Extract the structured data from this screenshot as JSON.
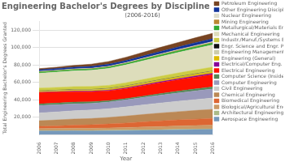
{
  "chart_data": {
    "type": "stacked_area",
    "title": "Engineering Bachelor's Degrees by Discipline",
    "subtitle": "(2006-2016)",
    "xlabel": "Year",
    "ylabel": "Total Engineering Bachelor's Degrees Granted",
    "x": [
      2006,
      2007,
      2008,
      2009,
      2010,
      2011,
      2012,
      2013,
      2014,
      2015,
      2016
    ],
    "xlim": [
      2006,
      2016
    ],
    "xticks": [
      2006,
      2007,
      2008,
      2009,
      2010,
      2011,
      2012,
      2013,
      2014,
      2015,
      2016
    ],
    "ylim": [
      0,
      130000
    ],
    "yticks": [
      {
        "value": 20000,
        "label": "20,000"
      },
      {
        "value": 40000,
        "label": "40,000"
      },
      {
        "value": 60000,
        "label": "60,000"
      },
      {
        "value": 80000,
        "label": "80,000"
      },
      {
        "value": 100000,
        "label": "100,000"
      },
      {
        "value": 120000,
        "label": "120,000"
      }
    ],
    "stacked": true,
    "grid": "y",
    "legend": "right",
    "series": [
      {
        "name": "Aerospace Engineering",
        "color": "#7799bb",
        "values": [
          4200,
          4300,
          4400,
          4300,
          4500,
          4700,
          5000,
          5300,
          5600,
          5900,
          6100
        ]
      },
      {
        "name": "Architectural Engineering",
        "color": "#aabb88",
        "values": [
          600,
          640,
          660,
          640,
          620,
          610,
          610,
          620,
          630,
          640,
          650
        ]
      },
      {
        "name": "Biological/Agricultural Eng.",
        "color": "#cc9966",
        "values": [
          2200,
          2300,
          2400,
          2500,
          2700,
          2900,
          3200,
          3500,
          3800,
          4100,
          4300
        ]
      },
      {
        "name": "Biomedical Engineering",
        "color": "#dd6633",
        "values": [
          2500,
          2900,
          3500,
          3900,
          4500,
          5200,
          5900,
          6500,
          6900,
          7200,
          7500
        ]
      },
      {
        "name": "Chemical Engineering",
        "color": "#bb8855",
        "values": [
          6500,
          6800,
          7000,
          7200,
          7500,
          8000,
          8500,
          9000,
          9500,
          10000,
          10500
        ]
      },
      {
        "name": "Civil Engineering",
        "color": "#cccccc",
        "values": [
          9000,
          9200,
          9500,
          9800,
          10000,
          10500,
          11000,
          11500,
          12000,
          12500,
          13000
        ]
      },
      {
        "name": "Computer Engineering",
        "color": "#9999bb",
        "values": [
          8500,
          8200,
          7900,
          7600,
          7600,
          8000,
          8500,
          9000,
          9500,
          10000,
          10500
        ]
      },
      {
        "name": "Computer Science (Inside Eng.)",
        "color": "#558855",
        "values": [
          1800,
          1900,
          2000,
          1800,
          1600,
          1500,
          1600,
          1800,
          2000,
          2200,
          2400
        ]
      },
      {
        "name": "Electrical Engineering",
        "color": "#ff1100",
        "values": [
          13000,
          12500,
          12000,
          11500,
          11200,
          11500,
          12000,
          12500,
          13000,
          13500,
          14000
        ]
      },
      {
        "name": "Electrical/Computer Eng.",
        "color": "#880099",
        "values": [
          400,
          500,
          600,
          700,
          800,
          900,
          1000,
          1100,
          1200,
          1300,
          1400
        ]
      },
      {
        "name": "Engineering (General)",
        "color": "#ddbb00",
        "values": [
          1000,
          1100,
          1200,
          1300,
          1400,
          1500,
          1600,
          1700,
          1800,
          1900,
          2000
        ]
      },
      {
        "name": "Engineering Management",
        "color": "#ccccaa",
        "values": [
          450,
          430,
          410,
          390,
          370,
          360,
          350,
          340,
          330,
          325,
          320
        ]
      },
      {
        "name": "Engr. Science and Engr. Physics",
        "color": "#111111",
        "values": [
          180,
          190,
          200,
          210,
          220,
          230,
          240,
          250,
          260,
          270,
          280
        ]
      },
      {
        "name": "Industr./Manuf./Systems Eng.",
        "color": "#cccc44",
        "values": [
          3200,
          3300,
          3400,
          3500,
          3600,
          3700,
          3900,
          4100,
          4300,
          4500,
          4700
        ]
      },
      {
        "name": "Mechanical Engineering",
        "color": "#ddddbb",
        "values": [
          17000,
          17500,
          18000,
          18500,
          19500,
          20500,
          21500,
          22500,
          23500,
          24500,
          25500
        ]
      },
      {
        "name": "Metallurgical/Materials Eng.",
        "color": "#33aa33",
        "values": [
          1400,
          1450,
          1500,
          1520,
          1550,
          1650,
          1750,
          1850,
          1950,
          2050,
          2150
        ]
      },
      {
        "name": "Mining Engineering",
        "color": "#bb8833",
        "values": [
          280,
          295,
          310,
          330,
          370,
          420,
          470,
          520,
          570,
          620,
          670
        ]
      },
      {
        "name": "Nuclear Engineering",
        "color": "#ddddcc",
        "values": [
          480,
          495,
          510,
          530,
          570,
          620,
          670,
          720,
          770,
          820,
          870
        ]
      },
      {
        "name": "Other Engineering Disciplines",
        "color": "#113399",
        "values": [
          1800,
          1900,
          2000,
          2100,
          2200,
          2400,
          2600,
          2800,
          3000,
          3200,
          3400
        ]
      },
      {
        "name": "Petroleum Engineering",
        "color": "#774422",
        "values": [
          1300,
          1600,
          2000,
          2600,
          3200,
          3700,
          4200,
          4700,
          5200,
          5700,
          6200
        ]
      }
    ]
  }
}
